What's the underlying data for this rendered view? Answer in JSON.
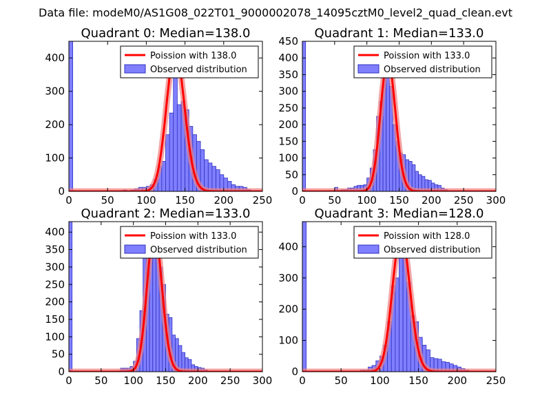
{
  "figure": {
    "suptitle": "Data file: modeM0/AS1G08_022T01_9000002078_14095cztM0_level2_quad_clean.evt"
  },
  "colors": {
    "hist_fill": "#7f7fff",
    "hist_edge": "#2f2fbf",
    "fit_line": "#ff0000",
    "fit_halo": "#f08080"
  },
  "chart_data": [
    {
      "type": "bar",
      "title": "Quadrant 0: Median=138.0",
      "median": 138.0,
      "xlim": [
        0,
        250
      ],
      "ylim": [
        0,
        450
      ],
      "xticks": [
        0,
        50,
        100,
        150,
        200,
        250
      ],
      "yticks": [
        0,
        100,
        200,
        300,
        400
      ],
      "bin_width": 5,
      "bins": [
        [
          0,
          450
        ],
        [
          70,
          4
        ],
        [
          80,
          4
        ],
        [
          85,
          8
        ],
        [
          90,
          12
        ],
        [
          95,
          12
        ],
        [
          100,
          15
        ],
        [
          105,
          20
        ],
        [
          110,
          35
        ],
        [
          115,
          75
        ],
        [
          120,
          90
        ],
        [
          125,
          170
        ],
        [
          130,
          235
        ],
        [
          135,
          420
        ],
        [
          140,
          260
        ],
        [
          145,
          270
        ],
        [
          150,
          245
        ],
        [
          155,
          195
        ],
        [
          160,
          170
        ],
        [
          165,
          150
        ],
        [
          170,
          125
        ],
        [
          175,
          95
        ],
        [
          180,
          85
        ],
        [
          185,
          75
        ],
        [
          190,
          65
        ],
        [
          195,
          50
        ],
        [
          200,
          40
        ],
        [
          205,
          30
        ],
        [
          210,
          20
        ],
        [
          215,
          15
        ],
        [
          220,
          15
        ],
        [
          225,
          12
        ],
        [
          230,
          5
        ]
      ],
      "legend": {
        "fit": "Poission with 138.0",
        "hist": "Observed distribution",
        "loc": "upper right"
      }
    },
    {
      "type": "bar",
      "title": "Quadrant 1: Median=133.0",
      "median": 133.0,
      "xlim": [
        0,
        300
      ],
      "ylim": [
        0,
        450
      ],
      "xticks": [
        0,
        50,
        100,
        150,
        200,
        250,
        300
      ],
      "yticks": [
        0,
        50,
        100,
        150,
        200,
        250,
        300,
        350,
        400,
        450
      ],
      "bin_width": 5,
      "bins": [
        [
          0,
          450
        ],
        [
          50,
          12
        ],
        [
          55,
          3
        ],
        [
          60,
          5
        ],
        [
          65,
          5
        ],
        [
          70,
          10
        ],
        [
          75,
          10
        ],
        [
          80,
          15
        ],
        [
          85,
          18
        ],
        [
          90,
          18
        ],
        [
          95,
          20
        ],
        [
          100,
          40
        ],
        [
          105,
          70
        ],
        [
          110,
          125
        ],
        [
          115,
          225
        ],
        [
          120,
          270
        ],
        [
          125,
          370
        ],
        [
          130,
          395
        ],
        [
          135,
          315
        ],
        [
          140,
          200
        ],
        [
          145,
          150
        ],
        [
          150,
          115
        ],
        [
          155,
          110
        ],
        [
          160,
          95
        ],
        [
          165,
          90
        ],
        [
          170,
          80
        ],
        [
          175,
          60
        ],
        [
          180,
          50
        ],
        [
          185,
          45
        ],
        [
          190,
          35
        ],
        [
          195,
          33
        ],
        [
          200,
          25
        ],
        [
          205,
          20
        ],
        [
          210,
          18
        ],
        [
          215,
          10
        ],
        [
          220,
          5
        ]
      ],
      "legend": {
        "fit": "Poission with 133.0",
        "hist": "Observed distribution",
        "loc": "upper right"
      }
    },
    {
      "type": "bar",
      "title": "Quadrant 2: Median=133.0",
      "median": 133.0,
      "xlim": [
        0,
        300
      ],
      "ylim": [
        0,
        430
      ],
      "xticks": [
        0,
        50,
        100,
        150,
        200,
        250,
        300
      ],
      "yticks": [
        0,
        50,
        100,
        150,
        200,
        250,
        300,
        350,
        400
      ],
      "bin_width": 5,
      "bins": [
        [
          0,
          430
        ],
        [
          80,
          10
        ],
        [
          85,
          10
        ],
        [
          90,
          10
        ],
        [
          95,
          15
        ],
        [
          100,
          30
        ],
        [
          105,
          95
        ],
        [
          110,
          175
        ],
        [
          115,
          350
        ],
        [
          120,
          370
        ],
        [
          125,
          385
        ],
        [
          130,
          405
        ],
        [
          135,
          345
        ],
        [
          140,
          300
        ],
        [
          145,
          250
        ],
        [
          150,
          165
        ],
        [
          155,
          155
        ],
        [
          160,
          105
        ],
        [
          165,
          95
        ],
        [
          170,
          75
        ],
        [
          175,
          55
        ],
        [
          180,
          40
        ],
        [
          185,
          35
        ],
        [
          190,
          20
        ],
        [
          195,
          15
        ],
        [
          200,
          12
        ],
        [
          205,
          10
        ],
        [
          210,
          5
        ]
      ],
      "legend": {
        "fit": "Poission with 133.0",
        "hist": "Observed distribution",
        "loc": "upper right"
      }
    },
    {
      "type": "bar",
      "title": "Quadrant 3: Median=128.0",
      "median": 128.0,
      "xlim": [
        0,
        250
      ],
      "ylim": [
        0,
        480
      ],
      "xticks": [
        0,
        50,
        100,
        150,
        200,
        250
      ],
      "yticks": [
        0,
        100,
        200,
        300,
        400
      ],
      "bin_width": 5,
      "bins": [
        [
          0,
          480
        ],
        [
          75,
          5
        ],
        [
          80,
          5
        ],
        [
          85,
          15
        ],
        [
          90,
          20
        ],
        [
          95,
          35
        ],
        [
          100,
          50
        ],
        [
          105,
          85
        ],
        [
          110,
          160
        ],
        [
          115,
          275
        ],
        [
          120,
          300
        ],
        [
          125,
          440
        ],
        [
          130,
          430
        ],
        [
          135,
          285
        ],
        [
          140,
          180
        ],
        [
          145,
          160
        ],
        [
          150,
          110
        ],
        [
          155,
          85
        ],
        [
          160,
          70
        ],
        [
          165,
          45
        ],
        [
          170,
          42
        ],
        [
          175,
          40
        ],
        [
          180,
          32
        ],
        [
          185,
          30
        ],
        [
          190,
          25
        ],
        [
          195,
          20
        ],
        [
          200,
          15
        ],
        [
          205,
          10
        ],
        [
          210,
          5
        ]
      ],
      "legend": {
        "fit": "Poission with 128.0",
        "hist": "Observed distribution",
        "loc": "upper right"
      }
    }
  ]
}
